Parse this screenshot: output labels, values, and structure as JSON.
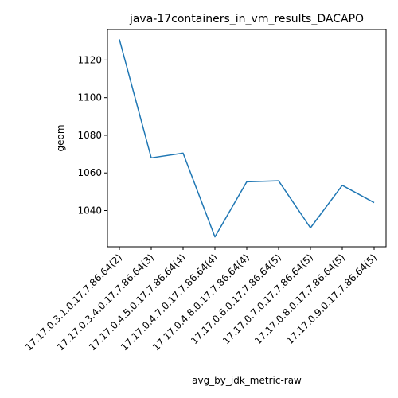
{
  "chart_data": {
    "type": "line",
    "title": "java-17containers_in_vm_results_DACAPO",
    "xlabel": "avg_by_jdk_metric-raw",
    "ylabel": "geom",
    "categories": [
      "17.17.0.3.1.0.17.7.86.64(2)",
      "17.17.0.3.4.0.17.7.86.64(3)",
      "17.17.0.4.5.0.17.7.86.64(4)",
      "17.17.0.4.7.0.17.7.86.64(4)",
      "17.17.0.4.8.0.17.7.86.64(4)",
      "17.17.0.6.0.17.7.86.64(5)",
      "17.17.0.7.0.17.7.86.64(5)",
      "17.17.0.8.0.17.7.86.64(5)",
      "17.17.0.9.0.17.7.86.64(5)"
    ],
    "series": [
      {
        "values": [
          1131,
          1068,
          1070.5,
          1026,
          1055.3,
          1055.8,
          1030.8,
          1053.4,
          1044.2
        ]
      }
    ],
    "yticks": [
      1040,
      1060,
      1080,
      1100,
      1120
    ],
    "ylim": [
      1020.75,
      1136.25
    ],
    "grid": false,
    "line_color": "#1f77b4"
  }
}
